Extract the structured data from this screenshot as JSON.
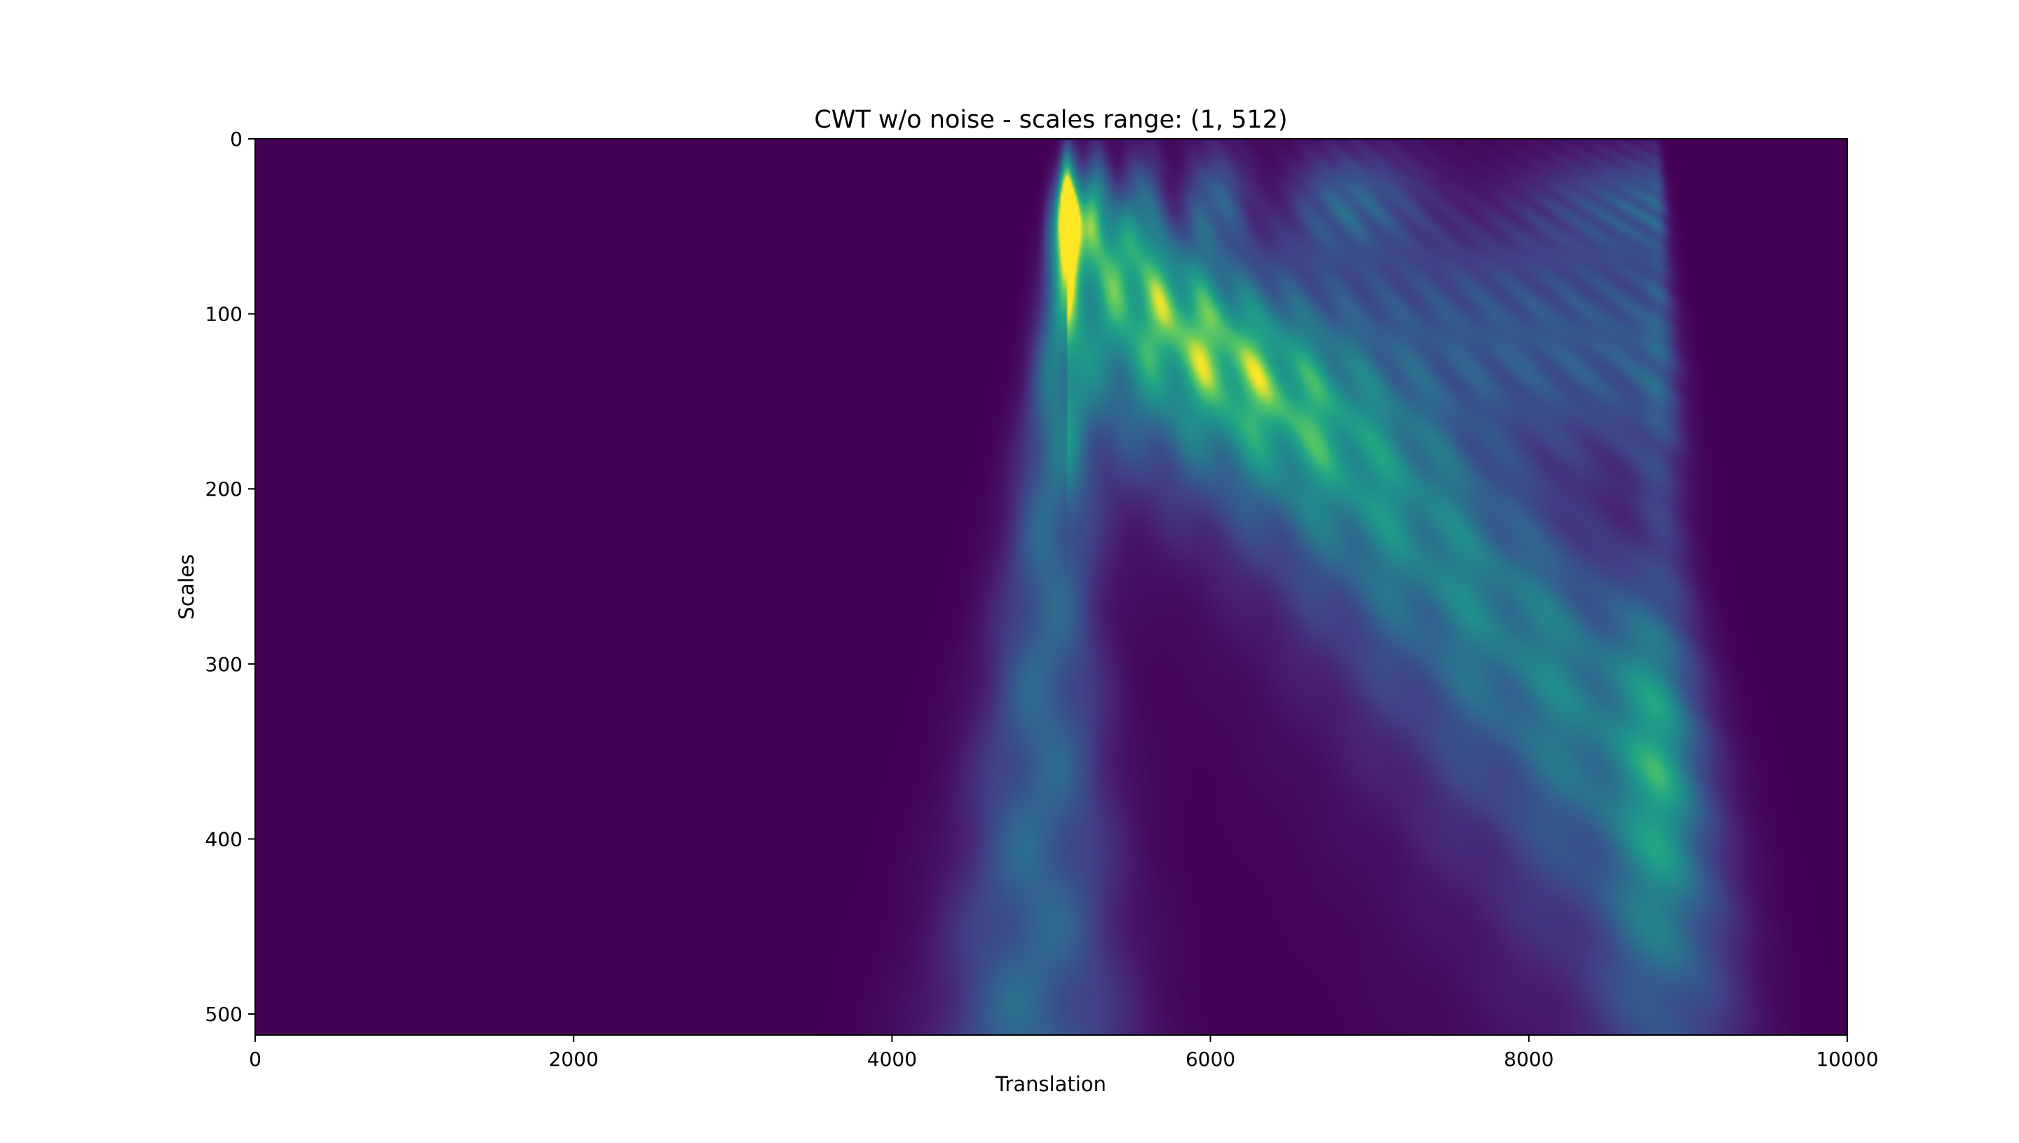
{
  "chart_data": {
    "type": "heatmap",
    "title": "CWT w/o noise - scales range: (1, 512)",
    "xlabel": "Translation",
    "ylabel": "Scales",
    "xlim": [
      0,
      10000
    ],
    "ylim": [
      512,
      0
    ],
    "x_ticks": [
      0,
      2000,
      4000,
      6000,
      8000,
      10000
    ],
    "y_ticks": [
      0,
      100,
      200,
      300,
      400,
      500
    ],
    "colormap": "viridis",
    "grid": false,
    "colors": {
      "background": "#440154",
      "mid": "#21918c",
      "high": "#fde725"
    },
    "features": {
      "chirp_segment_translation": [
        5100,
        8800
      ],
      "peak_translation": 5120,
      "peak_scale": 48
    }
  }
}
